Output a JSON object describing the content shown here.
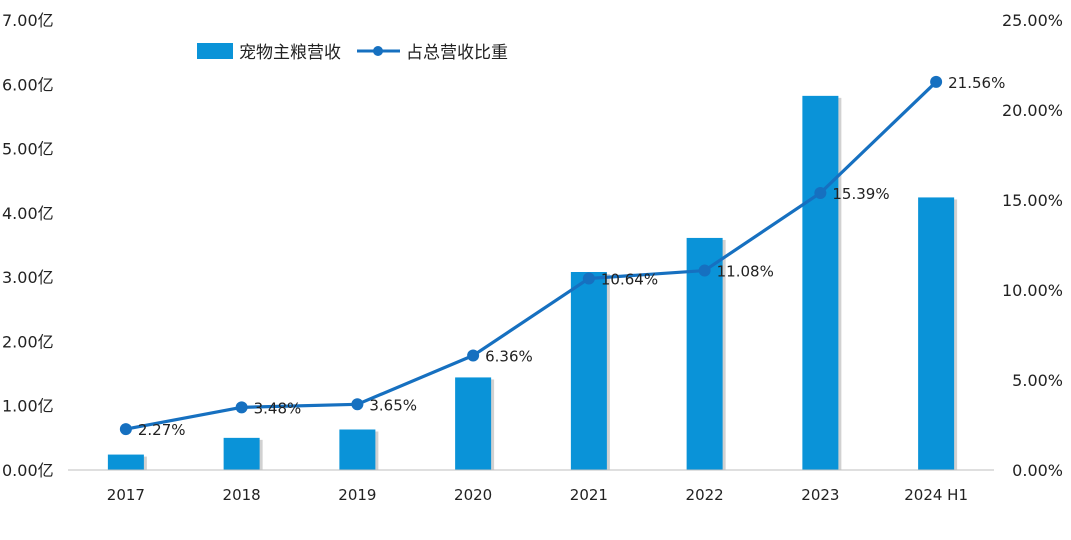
{
  "chart_data": {
    "type": "bar",
    "categories": [
      "2017",
      "2018",
      "2019",
      "2020",
      "2021",
      "2022",
      "2023",
      "2024 H1"
    ],
    "series": [
      {
        "name": "宠物主粮营收",
        "type": "bar",
        "axis": "left",
        "values": [
          0.24,
          0.5,
          0.63,
          1.44,
          3.08,
          3.61,
          5.82,
          4.24
        ],
        "color": "#0a93d8"
      },
      {
        "name": "占总营收比重",
        "type": "line",
        "axis": "right",
        "values": [
          2.27,
          3.48,
          3.65,
          6.36,
          10.64,
          11.08,
          15.39,
          21.56
        ],
        "data_labels": [
          "2.27%",
          "3.48%",
          "3.65%",
          "6.36%",
          "10.64%",
          "11.08%",
          "15.39%",
          "21.56%"
        ],
        "color": "#1670c0"
      }
    ],
    "y_left": {
      "ylim": [
        0,
        7
      ],
      "ticks": [
        0,
        1,
        2,
        3,
        4,
        5,
        6,
        7
      ],
      "tick_labels": [
        "0.00亿",
        "1.00亿",
        "2.00亿",
        "3.00亿",
        "4.00亿",
        "5.00亿",
        "6.00亿",
        "7.00亿"
      ]
    },
    "y_right": {
      "ylim": [
        0,
        25
      ],
      "ticks": [
        0,
        5,
        10,
        15,
        20,
        25
      ],
      "tick_labels": [
        "0.00%",
        "5.00%",
        "10.00%",
        "15.00%",
        "20.00%",
        "25.00%"
      ]
    },
    "grid": false,
    "legend": "top-left"
  }
}
